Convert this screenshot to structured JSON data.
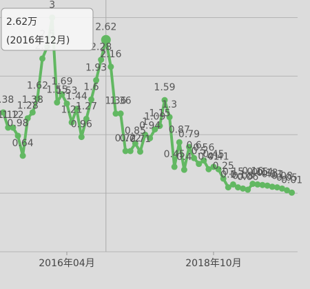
{
  "chart_data": {
    "type": "line",
    "categories": [
      null,
      null,
      null,
      null,
      null,
      null,
      null,
      null,
      null,
      null,
      null,
      null,
      null,
      "2016年04月",
      null,
      null,
      null,
      null,
      null,
      null,
      null,
      null,
      null,
      null,
      null,
      null,
      null,
      null,
      null,
      null,
      null,
      null,
      null,
      null,
      null,
      null,
      null,
      null,
      null,
      null,
      null,
      null,
      null,
      "2018年10月",
      null,
      null,
      null,
      null,
      null,
      null,
      null,
      null,
      null,
      null,
      null,
      null,
      null,
      null,
      null,
      null
    ],
    "series": [
      {
        "color": "#62b862",
        "values": [
          1.38,
          1.12,
          1.12,
          0.98,
          0.64,
          1.28,
          1.38,
          1.62,
          2.3,
          2.5,
          3,
          1.55,
          1.69,
          1.53,
          1.21,
          1.44,
          0.96,
          1.27,
          1.6,
          1.93,
          2.28,
          2.62,
          2.16,
          1.36,
          1.36,
          0.72,
          0.72,
          0.85,
          0.71,
          1.0,
          0.94,
          1.09,
          1.15,
          1.59,
          1.3,
          0.45,
          0.87,
          0.4,
          0.79,
          0.6,
          0.5,
          0.56,
          0.41,
          0.45,
          0.41,
          0.25,
          0.1,
          0.15,
          0.1,
          0.08,
          0.06,
          0.16,
          0.15,
          0.14,
          0.13,
          0.11,
          0.1,
          0.08,
          0.05,
          0.01
        ]
      }
    ],
    "ylim": [
      -1,
      3.3
    ],
    "yticks": [
      -1,
      0,
      1,
      2,
      3
    ],
    "grid": true,
    "tooltip": {
      "index": 21,
      "lines": [
        "2.62万",
        "(2016年12月)"
      ]
    }
  }
}
